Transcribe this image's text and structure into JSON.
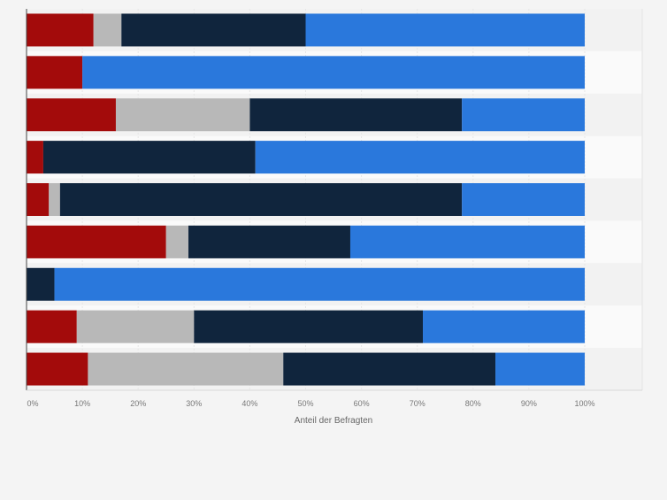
{
  "chart_data": {
    "type": "bar",
    "orientation": "horizontal",
    "stacked": "percent",
    "title": "",
    "xlabel": "Anteil der Befragten",
    "ylabel": "",
    "xlim": [
      0,
      100
    ],
    "x_ticks": [
      "0%",
      "10%",
      "20%",
      "30%",
      "40%",
      "50%",
      "60%",
      "70%",
      "80%",
      "90%",
      "100%"
    ],
    "categories": [
      "",
      "",
      "",
      "",
      "",
      "",
      "",
      "",
      ""
    ],
    "series": [
      {
        "color": "#a30b0b",
        "values": [
          12,
          10,
          16,
          3,
          4,
          25,
          0,
          9,
          11
        ]
      },
      {
        "color": "#b8b8b8",
        "values": [
          5,
          0,
          24,
          0,
          2,
          4,
          0,
          21,
          35
        ]
      },
      {
        "color": "#10253d",
        "values": [
          33,
          0,
          38,
          38,
          72,
          29,
          5,
          41,
          38
        ]
      },
      {
        "color": "#2a78dc",
        "values": [
          50,
          90,
          22,
          59,
          22,
          42,
          95,
          29,
          16
        ]
      }
    ],
    "grid": true,
    "legend": "none"
  }
}
